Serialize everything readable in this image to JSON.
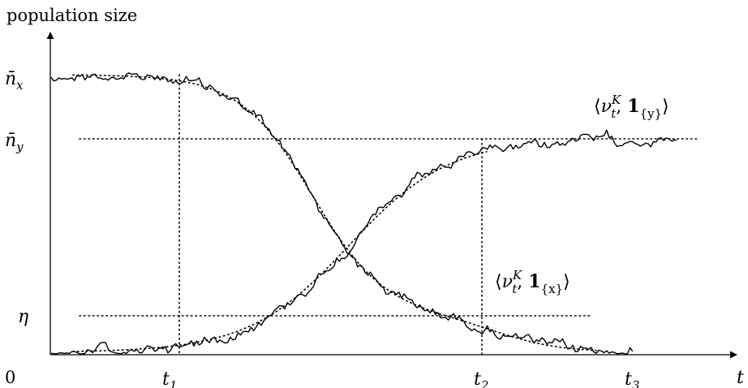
{
  "axes": {
    "y_title": "population size",
    "origin": "0",
    "x_label": "t"
  },
  "levels": {
    "n_x": {
      "base": "n̄",
      "sub": "x"
    },
    "n_y": {
      "base": "n̄",
      "sub": "y"
    },
    "eta": "η"
  },
  "times": {
    "t1": {
      "base": "t",
      "sub": "1"
    },
    "t2": {
      "base": "t",
      "sub": "2"
    },
    "t3": {
      "base": "t",
      "sub": "3"
    }
  },
  "curves": {
    "y_label": {
      "open": "⟨",
      "nu": "ν",
      "sup": "K",
      "sub": "t",
      "sep": ", ",
      "one": "1",
      "set": "{y}",
      "close": "⟩"
    },
    "x_label": {
      "open": "⟨",
      "nu": "ν",
      "sup": "K",
      "sub": "t",
      "sep": ", ",
      "one": "1",
      "set": "{x}",
      "close": "⟩"
    }
  }
}
